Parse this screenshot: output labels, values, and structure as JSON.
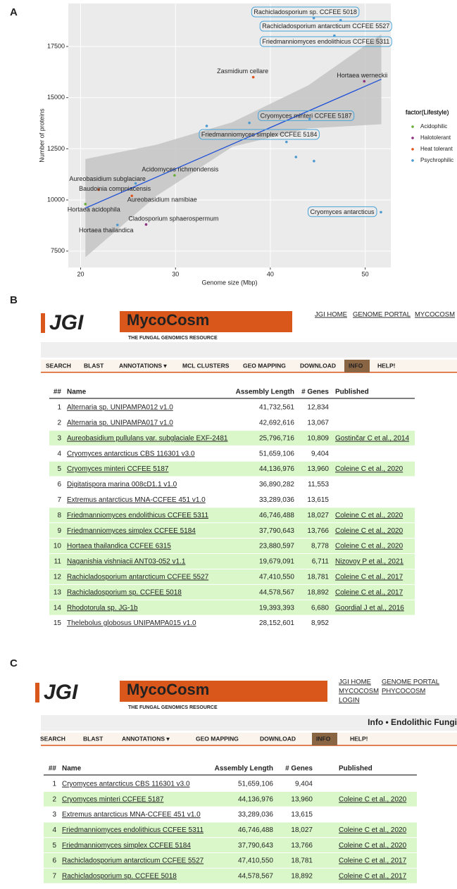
{
  "panel_labels": [
    "A",
    "B",
    "C"
  ],
  "chart_data": {
    "type": "scatter",
    "x_label": "Genome size (Mbp)",
    "y_label": "Number of proteins",
    "legend_title": "factor(Lifestyle)",
    "legend": "right",
    "xlim": [
      18.7,
      52.7
    ],
    "ylim": [
      6700,
      19600
    ],
    "xticks": [
      20,
      30,
      40,
      50
    ],
    "yticks": [
      7500,
      10000,
      12500,
      15000,
      17500
    ],
    "grid": true,
    "series": [
      {
        "name": "Acidophilic",
        "color": "#6aae3a",
        "x": [
          29.9,
          20.5
        ],
        "values": [
          11200,
          9800
        ],
        "labels": [
          "Acidomyces richmondensis",
          "Hortaea acidophila"
        ]
      },
      {
        "name": "Halotolerant",
        "color": "#8b2f7e",
        "x": [
          49.9,
          26.9
        ],
        "values": [
          15800,
          8800
        ],
        "labels": [
          "Hortaea werneckii",
          "Cladosporium sphaerospermum"
        ]
      },
      {
        "name": "Heat tolerant",
        "color": "#e0541c",
        "x": [
          38.2,
          21.9,
          25.4
        ],
        "values": [
          16000,
          10500,
          10200
        ],
        "labels": [
          "Zasmidium cellare",
          "Baudoinia compniacensis",
          "Aureobasidium namibiae"
        ]
      },
      {
        "name": "Psychrophilic",
        "color": "#4e9ad0",
        "x": [
          44.58,
          47.41,
          46.75,
          44.14,
          37.79,
          33.29,
          41.7,
          42.7,
          44.6,
          25.8,
          23.88,
          51.66
        ],
        "values": [
          18892,
          18781,
          18027,
          13960,
          13766,
          13615,
          12834,
          12100,
          11900,
          10809,
          8778,
          9404
        ],
        "labels": [
          "Rachicladosporium sp. CCFEE 5018",
          "Rachicladosporium antarcticum CCFEE 5527",
          "Friedmanniomyces endolithicus CCFEE 5311",
          "Cryomyces minteri CCFEE 5187",
          "Friedmanniomyces simplex CCFEE 5184",
          null,
          null,
          null,
          null,
          "Aureobasidium subglaciare",
          "Hortaea thailandica",
          "Cryomyces antarcticus"
        ]
      }
    ],
    "trend": {
      "color": "#1f4fd8",
      "x": [
        20.5,
        51.7
      ],
      "values": [
        9600,
        15900
      ]
    },
    "band": {
      "x": [
        20.5,
        28,
        36,
        44,
        51.7
      ],
      "upper": [
        12000,
        12700,
        13800,
        15600,
        18100
      ],
      "lower": [
        7200,
        10200,
        12600,
        13500,
        13700
      ]
    }
  },
  "panel_b": {
    "logo": "JGI",
    "brand": "MycoCosm",
    "tagline": "THE FUNGAL GENOMICS RESOURCE",
    "links": [
      "JGI HOME",
      "GENOME PORTAL",
      "MYCOCOSM"
    ],
    "nav": [
      "SEARCH",
      "BLAST",
      "ANNOTATIONS ▾",
      "MCL CLUSTERS",
      "GEO MAPPING",
      "DOWNLOAD",
      "INFO",
      "HELP!"
    ],
    "headers": [
      "##",
      "Name",
      "Assembly Length",
      "# Genes",
      "Published"
    ],
    "rows": [
      {
        "cells": [
          "1",
          "Alternaria sp. UNIPAMPA012 v1.0",
          "41,732,561",
          "12,834"
        ]
      },
      {
        "cells": [
          "2",
          "Alternaria sp. UNIPAMPA017 v1.0",
          "42,692,616",
          "13,067"
        ]
      },
      {
        "cells": [
          "3",
          "Aureobasidium pullulans var. subglaciale EXF-2481",
          "25,796,716",
          "10,809",
          "Gostinčar C et al., 2014"
        ],
        "highlight": true
      },
      {
        "cells": [
          "4",
          "Cryomyces antarcticus CBS 116301 v3.0",
          "51,659,106",
          "9,404"
        ]
      },
      {
        "cells": [
          "5",
          "Cryomyces minteri CCFEE 5187",
          "44,136,976",
          "13,960",
          "Coleine C et al., 2020"
        ],
        "highlight": true
      },
      {
        "cells": [
          "6",
          "Digitatispora marina 008cD1.1 v1.0",
          "36,890,282",
          "11,553"
        ]
      },
      {
        "cells": [
          "7",
          "Extremus antarcticus MNA-CCFEE 451 v1.0",
          "33,289,036",
          "13,615"
        ]
      },
      {
        "cells": [
          "8",
          "Friedmanniomyces endolithicus CCFEE 5311",
          "46,746,488",
          "18,027",
          "Coleine C et al., 2020"
        ],
        "highlight": true
      },
      {
        "cells": [
          "9",
          "Friedmanniomyces simplex CCFEE 5184",
          "37,790,643",
          "13,766",
          "Coleine C et al., 2020"
        ],
        "highlight": true
      },
      {
        "cells": [
          "10",
          "Hortaea thailandica CCFEE 6315",
          "23,880,597",
          "8,778",
          "Coleine C et al., 2020"
        ],
        "highlight": true
      },
      {
        "cells": [
          "11",
          "Naganishia vishniacii ANT03-052 v1.1",
          "19,679,091",
          "6,711",
          "Nizovoy P et al., 2021"
        ],
        "highlight": true
      },
      {
        "cells": [
          "12",
          "Rachicladosporium antarcticum CCFEE 5527",
          "47,410,550",
          "18,781",
          "Coleine C et al., 2017"
        ],
        "highlight": true
      },
      {
        "cells": [
          "13",
          "Rachicladosporium sp. CCFEE 5018",
          "44,578,567",
          "18,892",
          "Coleine C et al., 2017"
        ],
        "highlight": true
      },
      {
        "cells": [
          "14",
          "Rhodotorula sp. JG-1b",
          "19,393,393",
          "6,680",
          "Goordial J et al., 2016"
        ],
        "highlight": true
      },
      {
        "cells": [
          "15",
          "Thelebolus globosus UNIPAMPA015 v1.0",
          "28,152,601",
          "8,952"
        ]
      }
    ]
  },
  "panel_c": {
    "logo": "JGI",
    "brand": "MycoCosm",
    "tagline": "THE FUNGAL GENOMICS RESOURCE",
    "links": [
      "JGI HOME",
      "GENOME PORTAL",
      "MYCOCOSM",
      "PHYCOCOSM",
      "LOGIN"
    ],
    "page_title": "Info • Endolithic Fungi",
    "nav": [
      "SEARCH",
      "BLAST",
      "ANNOTATIONS ▾",
      "GEO MAPPING",
      "DOWNLOAD",
      "INFO",
      "HELP!"
    ],
    "headers": [
      "##",
      "Name",
      "Assembly Length",
      "# Genes",
      "Published"
    ],
    "rows": [
      {
        "cells": [
          "1",
          "Cryomyces antarcticus CBS 116301 v3.0",
          "51,659,106",
          "9,404"
        ]
      },
      {
        "cells": [
          "2",
          "Cryomyces minteri CCFEE 5187",
          "44,136,976",
          "13,960",
          "Coleine C et al., 2020"
        ],
        "highlight": true
      },
      {
        "cells": [
          "3",
          "Extremus antarcticus MNA-CCFEE 451 v1.0",
          "33,289,036",
          "13,615"
        ]
      },
      {
        "cells": [
          "4",
          "Friedmanniomyces endolithicus CCFEE 5311",
          "46,746,488",
          "18,027",
          "Coleine C et al., 2020"
        ],
        "highlight": true
      },
      {
        "cells": [
          "5",
          "Friedmanniomyces simplex CCFEE 5184",
          "37,790,643",
          "13,766",
          "Coleine C et al., 2020"
        ],
        "highlight": true
      },
      {
        "cells": [
          "6",
          "Rachicladosporium antarcticum CCFEE 5527",
          "47,410,550",
          "18,781",
          "Coleine C et al., 2017"
        ],
        "highlight": true
      },
      {
        "cells": [
          "7",
          "Rachicladosporium sp. CCFEE 5018",
          "44,578,567",
          "18,892",
          "Coleine C et al., 2017"
        ],
        "highlight": true
      }
    ]
  }
}
